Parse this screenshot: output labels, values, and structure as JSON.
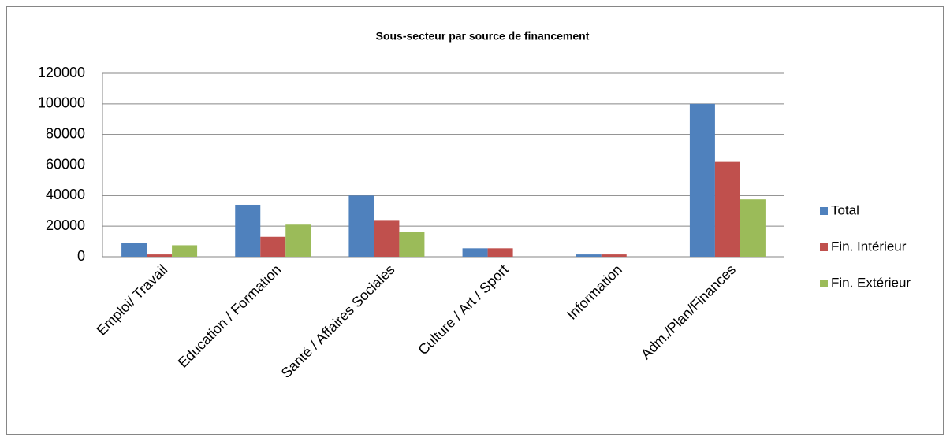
{
  "chart_data": {
    "type": "bar",
    "title": "Sous-secteur par source de financement",
    "categories": [
      "Emploi/ Travail",
      "Education / Formation",
      "Santé / Affaires Sociales",
      "Culture / Art / Sport",
      "Information",
      "Adm./Plan/Finances"
    ],
    "series": [
      {
        "name": "Total",
        "color": "#4f81bd",
        "values": [
          9000,
          34000,
          40000,
          5500,
          1500,
          100000
        ]
      },
      {
        "name": "Fin. Intérieur",
        "color": "#c0504d",
        "values": [
          1500,
          13000,
          24000,
          5500,
          1500,
          62000
        ]
      },
      {
        "name": "Fin. Extérieur",
        "color": "#9bbb59",
        "values": [
          7500,
          21000,
          16000,
          0,
          0,
          37500
        ]
      }
    ],
    "ylim": [
      0,
      120000
    ],
    "yticks": [
      0,
      20000,
      40000,
      60000,
      80000,
      100000,
      120000
    ],
    "grid": true,
    "legend": "right"
  }
}
